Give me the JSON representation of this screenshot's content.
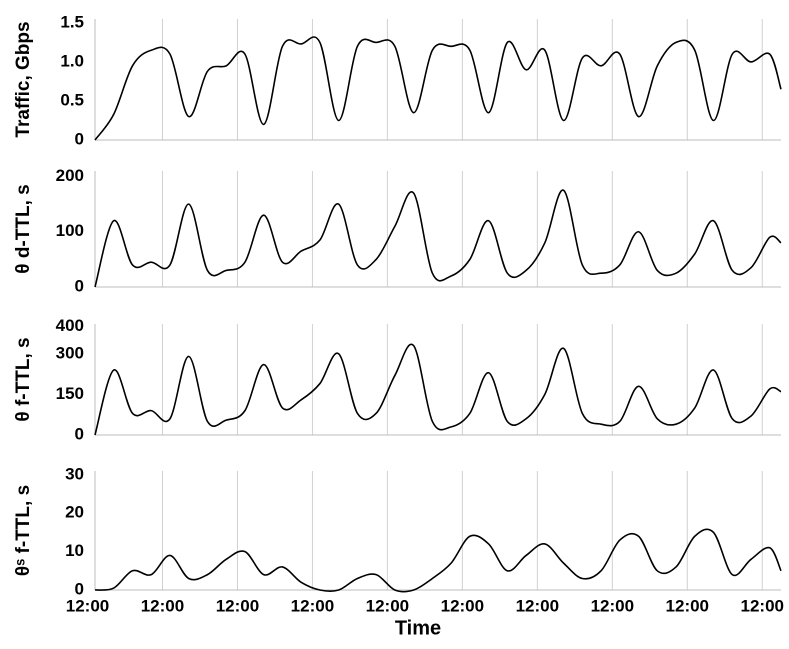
{
  "chart_data": [
    {
      "type": "line",
      "ylabel": "Traffic, Gbps",
      "xlim": [
        0.1,
        9.25
      ],
      "xticks": [
        1,
        2,
        3,
        4,
        5,
        6,
        7,
        8,
        9
      ],
      "ylim": [
        0,
        1.55
      ],
      "yticks": [
        0,
        0.5,
        {
          "value": 1,
          "label": "1.0"
        },
        1.5
      ],
      "grid": true,
      "color": "#000000",
      "x": [
        0.1,
        0.35,
        0.6,
        0.85,
        1.1,
        1.35,
        1.6,
        1.85,
        2.1,
        2.35,
        2.6,
        2.85,
        3.1,
        3.35,
        3.6,
        3.85,
        4.1,
        4.35,
        4.6,
        4.85,
        5.1,
        5.35,
        5.6,
        5.85,
        6.1,
        6.35,
        6.6,
        6.85,
        7.1,
        7.35,
        7.6,
        7.85,
        8.1,
        8.35,
        8.6,
        8.85,
        9.1,
        9.25
      ],
      "values": [
        0,
        0.33,
        0.95,
        1.15,
        1.1,
        0.3,
        0.88,
        0.95,
        1.1,
        0.2,
        1.2,
        1.23,
        1.25,
        0.25,
        1.2,
        1.25,
        1.2,
        0.35,
        1.15,
        1.2,
        1.15,
        0.35,
        1.25,
        0.9,
        1.15,
        0.25,
        1.05,
        0.95,
        1.1,
        0.3,
        0.95,
        1.25,
        1.15,
        0.25,
        1.1,
        1.0,
        1.1,
        0.65
      ]
    },
    {
      "type": "line",
      "ylabel": "θ  d-TTL, s",
      "xlim": [
        0.1,
        9.25
      ],
      "xticks": [
        1,
        2,
        3,
        4,
        5,
        6,
        7,
        8,
        9
      ],
      "ylim": [
        0,
        210
      ],
      "yticks": [
        0,
        100,
        200
      ],
      "grid": true,
      "color": "#000000",
      "x": [
        0.1,
        0.35,
        0.6,
        0.85,
        1.1,
        1.35,
        1.6,
        1.85,
        2.1,
        2.35,
        2.6,
        2.85,
        3.1,
        3.35,
        3.6,
        3.85,
        4.1,
        4.35,
        4.6,
        4.85,
        5.1,
        5.35,
        5.6,
        5.85,
        6.1,
        6.35,
        6.6,
        6.85,
        7.1,
        7.35,
        7.6,
        7.85,
        8.1,
        8.35,
        8.6,
        8.85,
        9.1,
        9.25
      ],
      "values": [
        0,
        120,
        40,
        45,
        40,
        150,
        30,
        30,
        45,
        130,
        45,
        65,
        85,
        150,
        40,
        50,
        110,
        170,
        25,
        20,
        50,
        120,
        25,
        30,
        80,
        175,
        40,
        25,
        40,
        100,
        30,
        25,
        60,
        120,
        30,
        35,
        90,
        80
      ]
    },
    {
      "type": "line",
      "ylabel": "θ f-TTL, s",
      "xlim": [
        0.1,
        9.25
      ],
      "xticks": [
        1,
        2,
        3,
        4,
        5,
        6,
        7,
        8,
        9
      ],
      "ylim": [
        0,
        410
      ],
      "yticks": [
        0,
        150,
        300,
        400
      ],
      "grid": true,
      "color": "#000000",
      "x": [
        0.1,
        0.35,
        0.6,
        0.85,
        1.1,
        1.35,
        1.6,
        1.85,
        2.1,
        2.35,
        2.6,
        2.85,
        3.1,
        3.35,
        3.6,
        3.85,
        4.1,
        4.35,
        4.6,
        4.85,
        5.1,
        5.35,
        5.6,
        5.85,
        6.1,
        6.35,
        6.6,
        6.85,
        7.1,
        7.35,
        7.6,
        7.85,
        8.1,
        8.35,
        8.6,
        8.85,
        9.1,
        9.25
      ],
      "values": [
        0,
        240,
        80,
        90,
        60,
        290,
        50,
        55,
        90,
        260,
        100,
        130,
        190,
        300,
        80,
        80,
        220,
        330,
        50,
        30,
        80,
        230,
        50,
        60,
        150,
        320,
        80,
        40,
        50,
        180,
        60,
        40,
        100,
        240,
        60,
        70,
        170,
        160
      ]
    },
    {
      "type": "line",
      "ylabel": "θˢ f-TTL, s",
      "xlabel": "Time",
      "xlim": [
        0.1,
        9.25
      ],
      "xticks": [
        {
          "value": 0,
          "label": "12:00"
        },
        {
          "value": 1,
          "label": "12:00"
        },
        {
          "value": 2,
          "label": "12:00"
        },
        {
          "value": 3,
          "label": "12:00"
        },
        {
          "value": 4,
          "label": "12:00"
        },
        {
          "value": 5,
          "label": "12:00"
        },
        {
          "value": 6,
          "label": "12:00"
        },
        {
          "value": 7,
          "label": "12:00"
        },
        {
          "value": 8,
          "label": "12:00"
        },
        {
          "value": 9,
          "label": "12:00"
        }
      ],
      "ylim": [
        0,
        31
      ],
      "yticks": [
        0,
        10,
        20,
        30
      ],
      "grid": true,
      "color": "#000000",
      "x": [
        0.1,
        0.35,
        0.6,
        0.85,
        1.1,
        1.35,
        1.6,
        1.85,
        2.1,
        2.35,
        2.6,
        2.85,
        3.1,
        3.35,
        3.6,
        3.85,
        4.1,
        4.35,
        4.6,
        4.85,
        5.1,
        5.35,
        5.6,
        5.85,
        6.1,
        6.35,
        6.6,
        6.85,
        7.1,
        7.35,
        7.6,
        7.85,
        8.1,
        8.35,
        8.6,
        8.85,
        9.1,
        9.25
      ],
      "values": [
        0,
        0.5,
        5,
        4,
        9,
        3,
        4,
        8,
        10,
        4,
        6,
        2,
        0,
        0,
        3,
        4,
        0,
        0,
        3,
        7,
        14,
        12,
        5,
        9,
        12,
        7,
        3,
        5,
        13,
        14,
        5,
        6,
        14,
        15,
        4,
        8,
        11,
        5
      ]
    }
  ]
}
